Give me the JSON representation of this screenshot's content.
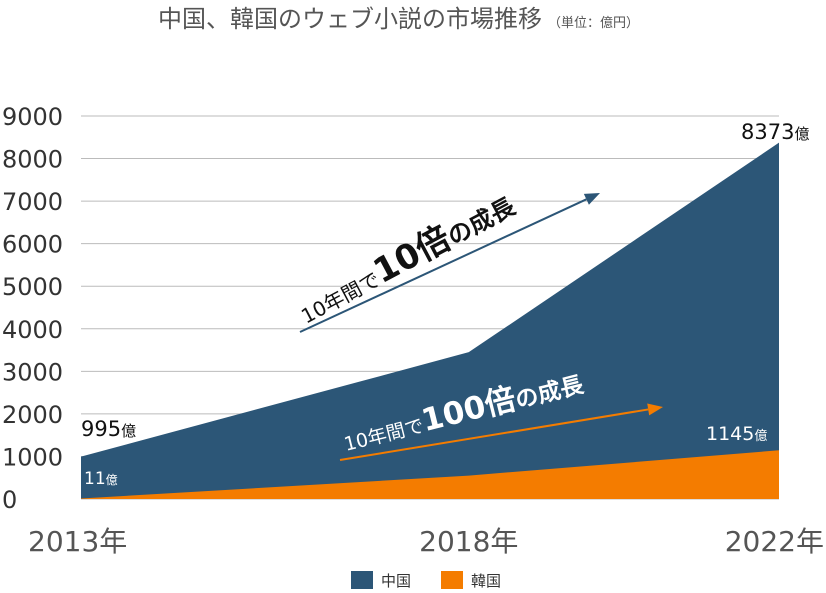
{
  "chart_data": {
    "type": "area",
    "title": "中国、韓国のウェブ小説の市場推移",
    "subtitle": "（単位：億円）",
    "categories": [
      "2013年",
      "2018年",
      "2022年"
    ],
    "x": [
      2013,
      2018,
      2022
    ],
    "ylim": [
      0,
      9000
    ],
    "yticks": [
      "0",
      "1000",
      "2000",
      "3000",
      "4000",
      "5000",
      "6000",
      "7000",
      "8000",
      "9000"
    ],
    "grid": true,
    "legend_position": "bottom-center",
    "series": [
      {
        "name": "中国",
        "values": [
          995,
          3450,
          8373
        ],
        "color": "#2c5677"
      },
      {
        "name": "韓国",
        "values": [
          11,
          550,
          1145
        ],
        "color": "#f47c00"
      }
    ],
    "data_labels": {
      "china_start": {
        "number": "995",
        "unit": "億"
      },
      "china_end": {
        "number": "8373",
        "unit": "億"
      },
      "korea_start": {
        "number": "11",
        "unit": "億"
      },
      "korea_end": {
        "number": "1145",
        "unit": "億"
      }
    },
    "annotations": {
      "china_growth": {
        "prefix": "10年間で",
        "big": "10倍",
        "suffix": "の成長",
        "color": "#111111"
      },
      "korea_growth": {
        "prefix": "10年間で",
        "big": "100倍",
        "suffix": "の成長",
        "color": "#ffffff"
      }
    }
  }
}
